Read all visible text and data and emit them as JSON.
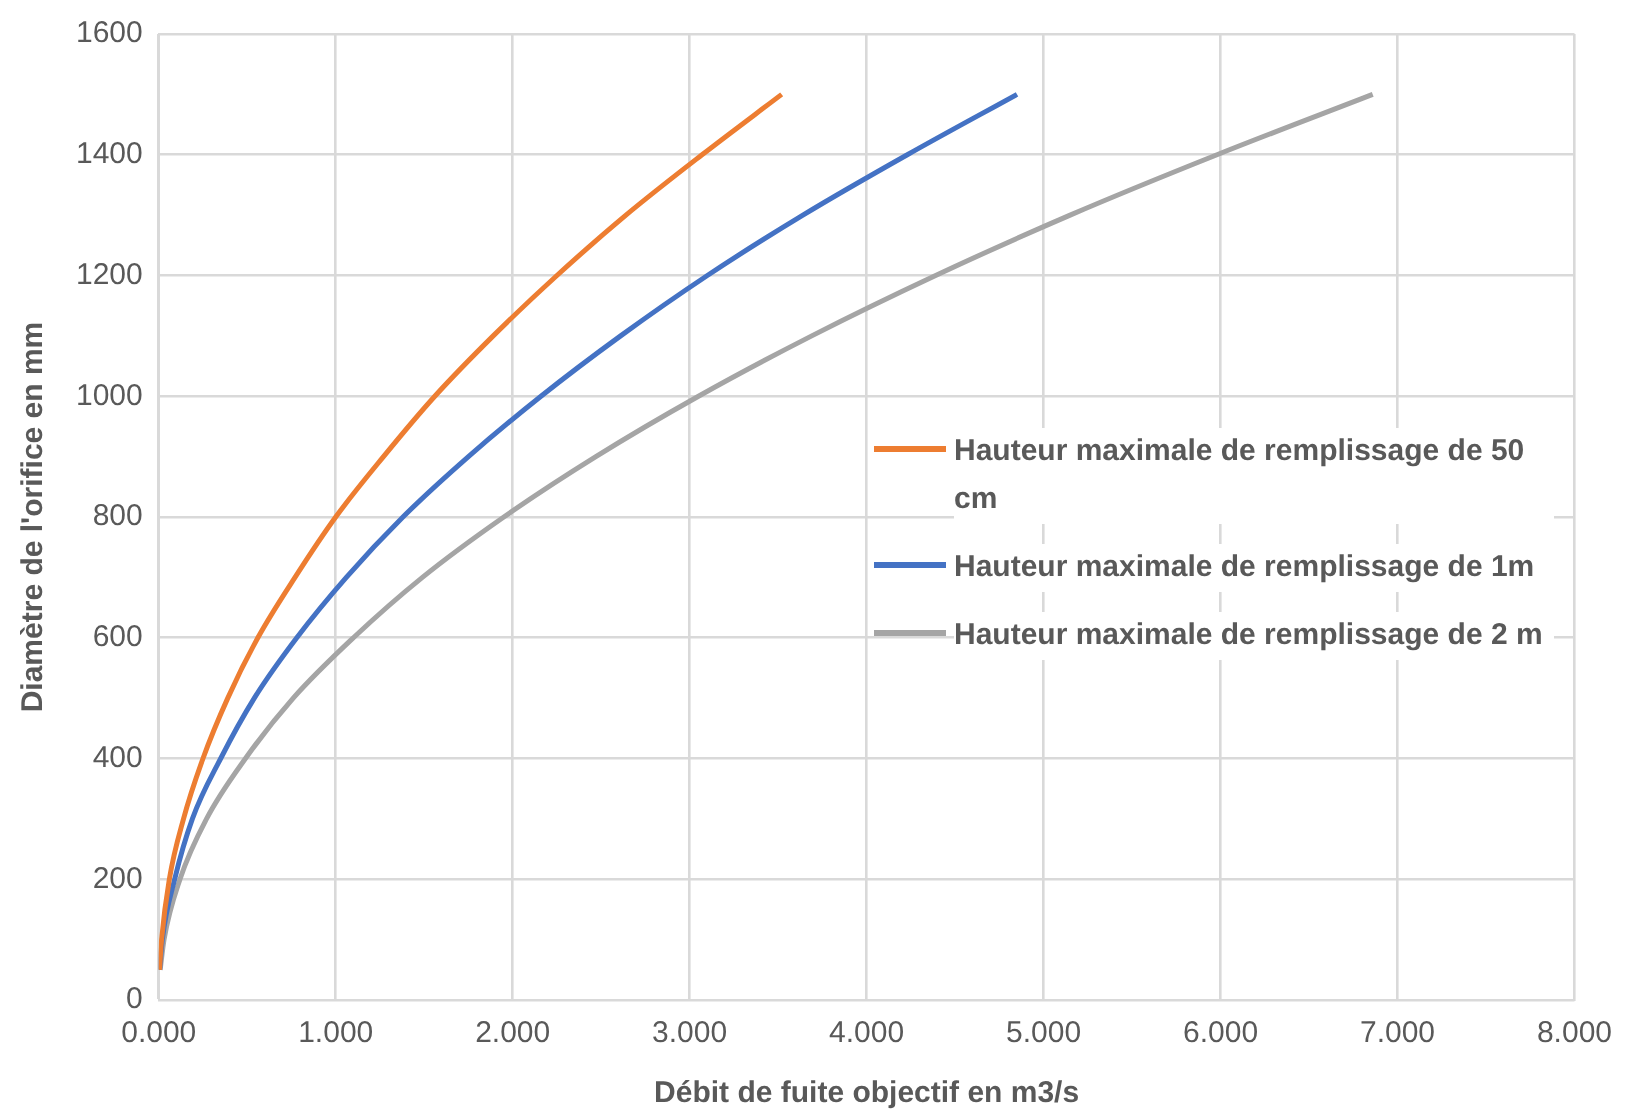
{
  "chart_data": {
    "type": "line",
    "xlabel": "Débit de fuite objectif en m3/s",
    "ylabel": "Diamètre de l'orifice en mm",
    "xlim": [
      0,
      8
    ],
    "xticks": [
      {
        "value": 0,
        "label": "0.000"
      },
      {
        "value": 1,
        "label": "1.000"
      },
      {
        "value": 2,
        "label": "2.000"
      },
      {
        "value": 3,
        "label": "3.000"
      },
      {
        "value": 4,
        "label": "4.000"
      },
      {
        "value": 5,
        "label": "5.000"
      },
      {
        "value": 6,
        "label": "6.000"
      },
      {
        "value": 7,
        "label": "7.000"
      },
      {
        "value": 8,
        "label": "8.000"
      }
    ],
    "ylim": [
      0,
      1600
    ],
    "yticks": [
      0,
      200,
      400,
      600,
      800,
      1000,
      1200,
      1400,
      1600
    ],
    "grid": true,
    "legend": "right",
    "marker": "none",
    "line_style": "solid",
    "series": [
      {
        "name": "Hauteur maximale de remplissage de 50 cm",
        "color": "#ed7d31",
        "x": [
          0.004,
          0.016,
          0.06,
          0.14,
          0.25,
          0.39,
          0.56,
          0.77,
          1.0,
          1.27,
          1.56,
          1.89,
          2.25,
          2.64,
          3.07,
          3.52
        ],
        "values": [
          50,
          100,
          200,
          300,
          400,
          500,
          600,
          700,
          800,
          900,
          1000,
          1100,
          1200,
          1300,
          1400,
          1500
        ]
      },
      {
        "name": "Hauteur maximale de remplissage de 1m",
        "color": "#4472c4",
        "x": [
          0.005,
          0.02,
          0.09,
          0.19,
          0.35,
          0.54,
          0.78,
          1.06,
          1.38,
          1.75,
          2.16,
          2.61,
          3.1,
          3.64,
          4.23,
          4.85
        ],
        "values": [
          50,
          100,
          200,
          300,
          400,
          500,
          600,
          700,
          800,
          900,
          1000,
          1100,
          1200,
          1300,
          1400,
          1500
        ]
      },
      {
        "name": "Hauteur maximale de remplissage de 2 m",
        "color": "#a5a5a5",
        "x": [
          0.008,
          0.03,
          0.12,
          0.27,
          0.49,
          0.76,
          1.1,
          1.49,
          1.95,
          2.47,
          3.05,
          3.69,
          4.39,
          5.15,
          5.98,
          6.86
        ],
        "values": [
          50,
          100,
          200,
          300,
          400,
          500,
          600,
          700,
          800,
          900,
          1000,
          1100,
          1200,
          1300,
          1400,
          1500
        ]
      }
    ]
  }
}
